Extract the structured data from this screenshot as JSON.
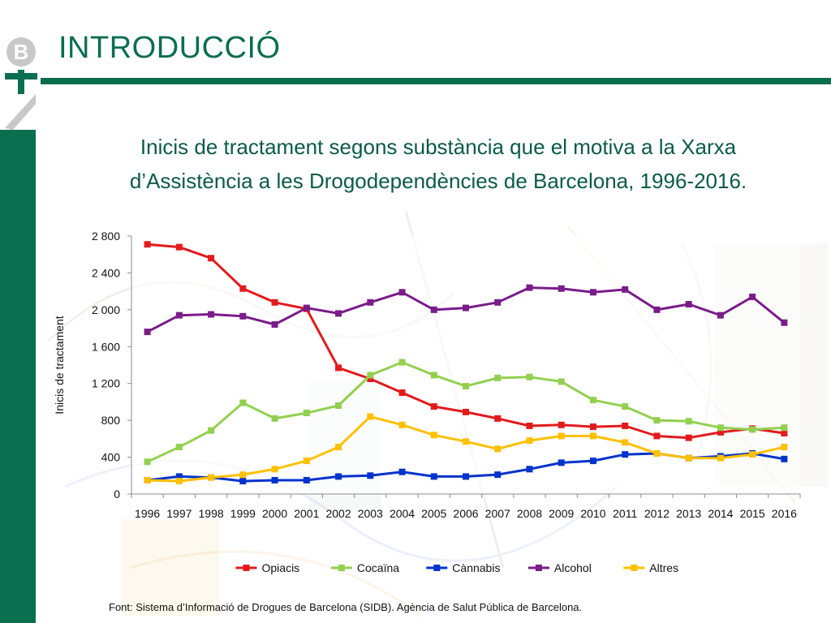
{
  "slide": {
    "heading": "INTRODUCCIÓ",
    "logo_text": "B",
    "source": "Font: Sistema d’Informació de Drogues de Barcelona (SIDB). Agència de Salut Pública de Barcelona."
  },
  "colors": {
    "brand_green": "#0b6e4f",
    "title_text": "#0b5a4a"
  },
  "chart_data": {
    "type": "line",
    "title_line1": "Inicis de tractament segons substància que el motiva a la Xarxa",
    "title_line2": "d’Assistència a les Drogodependències de Barcelona, 1996-2016.",
    "xlabel": "",
    "ylabel": "Inicis de tractament",
    "ylim": [
      0,
      2800
    ],
    "yticks": [
      0,
      400,
      800,
      1200,
      1600,
      2000,
      2400,
      2800
    ],
    "ytick_labels": [
      "0",
      "400",
      "800",
      "1 200",
      "1 600",
      "2 000",
      "2 400",
      "2 800"
    ],
    "grid": false,
    "legend_position": "bottom",
    "categories": [
      "1996",
      "1997",
      "1998",
      "1999",
      "2000",
      "2001",
      "2002",
      "2003",
      "2004",
      "2005",
      "2006",
      "2007",
      "2008",
      "2009",
      "2010",
      "2011",
      "2012",
      "2013",
      "2014",
      "2015",
      "2016"
    ],
    "series": [
      {
        "name": "Opiacis",
        "color": "#e31a1c",
        "values": [
          2710,
          2680,
          2560,
          2230,
          2080,
          2010,
          1370,
          1250,
          1100,
          950,
          890,
          820,
          740,
          750,
          730,
          740,
          630,
          610,
          670,
          710,
          660
        ]
      },
      {
        "name": "Cocaïna",
        "color": "#92d050",
        "values": [
          350,
          510,
          690,
          990,
          820,
          880,
          960,
          1290,
          1430,
          1290,
          1170,
          1260,
          1270,
          1220,
          1020,
          950,
          800,
          790,
          720,
          700,
          720
        ]
      },
      {
        "name": "Cànnabis",
        "color": "#0033cc",
        "values": [
          150,
          190,
          180,
          140,
          150,
          150,
          190,
          200,
          240,
          190,
          190,
          210,
          270,
          340,
          360,
          430,
          440,
          390,
          410,
          440,
          380
        ]
      },
      {
        "name": "Alcohol",
        "color": "#7a1c8a",
        "values": [
          1760,
          1940,
          1950,
          1930,
          1840,
          2020,
          1960,
          2080,
          2190,
          2000,
          2020,
          2080,
          2240,
          2230,
          2190,
          2220,
          2000,
          2060,
          1940,
          2140,
          1860
        ]
      },
      {
        "name": "Altres",
        "color": "#ffc000",
        "values": [
          150,
          140,
          180,
          210,
          270,
          360,
          510,
          840,
          750,
          640,
          570,
          490,
          580,
          630,
          630,
          560,
          440,
          390,
          390,
          430,
          510
        ]
      }
    ]
  }
}
